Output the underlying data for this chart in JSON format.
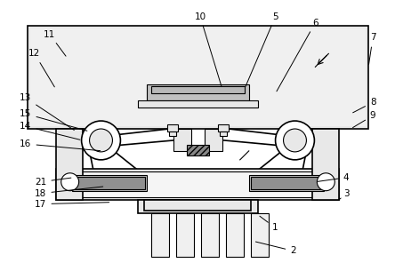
{
  "bg_color": "#ffffff",
  "line_color": "#000000",
  "gray_light": "#e8e8e8",
  "gray_med": "#c0c0c0",
  "gray_dark": "#888888",
  "gray_fill": "#d4d4d4",
  "figsize": [
    4.44,
    2.96
  ],
  "dpi": 100
}
